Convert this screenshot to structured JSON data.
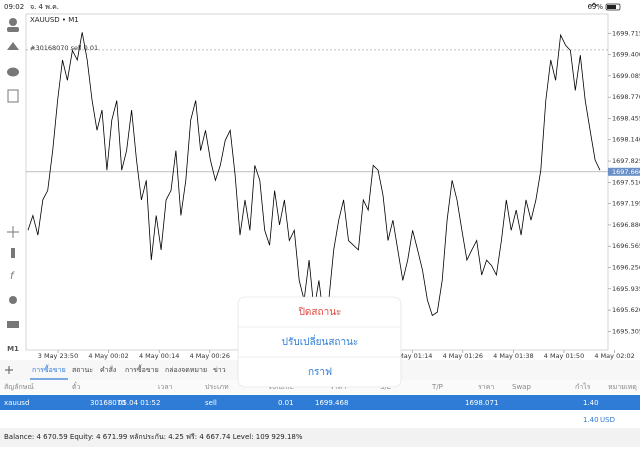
{
  "status_bar": {
    "time": "09:02",
    "date": "จ. 4 พ.ค.",
    "battery": "69%"
  },
  "chart": {
    "type": "line",
    "symbol_label": "XAUUSD • M1",
    "timeframe_button": "M1",
    "color": "#000000",
    "values": [
      1696.8,
      1697.02,
      1696.73,
      1697.25,
      1697.39,
      1697.98,
      1698.72,
      1699.32,
      1699.02,
      1699.46,
      1699.32,
      1699.73,
      1699.32,
      1698.72,
      1698.28,
      1698.58,
      1697.69,
      1698.43,
      1698.72,
      1697.69,
      1697.98,
      1698.58,
      1697.84,
      1697.25,
      1697.54,
      1696.36,
      1697.02,
      1696.51,
      1697.25,
      1697.39,
      1697.98,
      1697.02,
      1697.54,
      1698.43,
      1698.72,
      1697.98,
      1698.28,
      1697.84,
      1697.54,
      1697.76,
      1698.13,
      1698.28,
      1697.62,
      1696.73,
      1697.25,
      1696.8,
      1697.76,
      1697.54,
      1696.8,
      1696.58,
      1697.39,
      1696.88,
      1697.25,
      1696.65,
      1696.8,
      1696.06,
      1695.77,
      1696.36,
      1695.62,
      1696.06,
      1695.47,
      1695.77,
      1696.51,
      1696.95,
      1697.25,
      1696.65,
      1696.58,
      1696.51,
      1697.25,
      1697.1,
      1697.76,
      1697.69,
      1697.32,
      1696.65,
      1696.95,
      1696.51,
      1696.06,
      1696.36,
      1696.8,
      1696.51,
      1696.21,
      1695.77,
      1695.54,
      1695.59,
      1696.06,
      1696.95,
      1697.54,
      1697.25,
      1696.8,
      1696.36,
      1696.51,
      1696.65,
      1696.14,
      1696.36,
      1696.28,
      1696.14,
      1696.65,
      1697.25,
      1696.8,
      1697.1,
      1696.73,
      1697.25,
      1696.95,
      1697.25,
      1697.69,
      1698.72,
      1699.32,
      1699.02,
      1699.69,
      1699.54,
      1699.46,
      1698.87,
      1699.39,
      1698.72,
      1698.28,
      1697.84,
      1697.69
    ],
    "ylim": [
      1695.03,
      1700.0
    ],
    "yticks": [
      1699.715,
      {
        "value": 1699.4,
        "label": "1699.400"
      },
      1699.085,
      {
        "value": 1698.77,
        "label": "1698.770"
      },
      1698.455,
      {
        "value": 1698.14,
        "label": "1698.140"
      },
      1697.825,
      {
        "value": 1697.51,
        "label": "1697.510"
      },
      1697.195,
      {
        "value": 1696.88,
        "label": "1696.880"
      },
      1696.565,
      {
        "value": 1696.25,
        "label": "1696.250"
      },
      1695.935,
      {
        "value": 1695.62,
        "label": "1695.620"
      },
      1695.305
    ],
    "x_labels": [
      "3 May 23:50",
      "4 May 00:02",
      "4 May 00:14",
      "4 May 00:26",
      null,
      null,
      null,
      "4 May 01:14",
      "4 May 01:26",
      "4 May 01:38",
      "4 May 01:50",
      "4 May 02:02"
    ],
    "current_price": {
      "value": 1697.666,
      "label": "1697.666"
    },
    "order_line": {
      "label": "#30168070 sell 0.01",
      "value": 1699.468
    }
  },
  "tabs": [
    "การซื้อขาย",
    "สถานะ",
    "คำสั่ง",
    "การซื้อขาย",
    "กล่องจดหมาย",
    "ข่าว"
  ],
  "table": {
    "header": [
      "สัญลักษณ์",
      "ตั๋ว",
      "เวลา",
      "ประเภท",
      "Volume",
      "ราคา",
      "S/L",
      "T/P",
      "ราคา",
      "Swap",
      "กำไร",
      "หมายเหตุ"
    ],
    "row": [
      "xauusd",
      "30168070",
      "05.04 01:52",
      "sell",
      "0.01",
      "1699.468",
      "1698.071",
      "1.40"
    ],
    "total": [
      "1.40",
      "USD"
    ]
  },
  "footer": "Balance: 4 670.59 Equity: 4 671.99 หลักประกัน: 4.25 ฟรี: 4 667.74 Level: 109 929.18%",
  "popup": {
    "items": [
      "ปิดสถานะ",
      "ปรับเปลี่ยนสถานะ",
      "กราฟ"
    ]
  }
}
